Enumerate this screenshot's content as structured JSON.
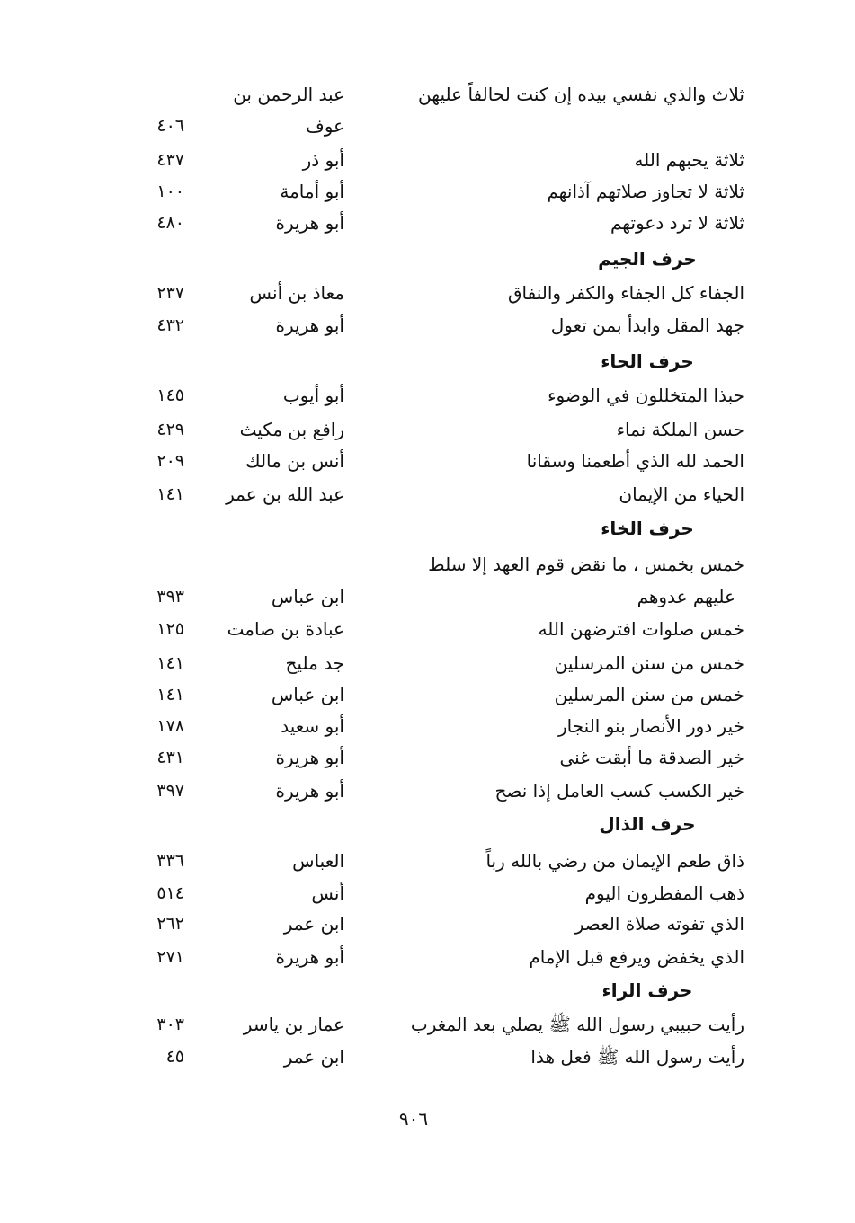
{
  "rows": [
    {
      "type": "entry",
      "hadith": "ثلاث والذي نفسي بيده إن كنت لحالفاً عليهن",
      "narrator": "عبد الرحمن بن",
      "page": ""
    },
    {
      "type": "entry",
      "hadith": "",
      "narrator": "عوف",
      "page": "٤٠٦"
    },
    {
      "type": "entry",
      "hadith": "ثلاثة يحبهم الله",
      "narrator": "أبو ذر",
      "page": "٤٣٧"
    },
    {
      "type": "entry",
      "hadith": "ثلاثة لا تجاوز صلاتهم آذانهم",
      "narrator": "أبو أمامة",
      "page": "١٠٠"
    },
    {
      "type": "entry",
      "hadith": "ثلاثة لا ترد دعوتهم",
      "narrator": "أبو هريرة",
      "page": "٤٨٠"
    },
    {
      "type": "header",
      "hadith": "حرف الجيم"
    },
    {
      "type": "entry",
      "hadith": "الجفاء كل الجفاء والكفر والنفاق",
      "narrator": "معاذ بن أنس",
      "page": "٢٣٧"
    },
    {
      "type": "entry",
      "hadith": "جهد المقل وابدأ بمن تعول",
      "narrator": "أبو هريرة",
      "page": "٤٣٢"
    },
    {
      "type": "header",
      "hadith": "حرف الحاء"
    },
    {
      "type": "entry",
      "hadith": "حبذا المتخللون في الوضوء",
      "narrator": "أبو أيوب",
      "page": "١٤٥"
    },
    {
      "type": "entry",
      "hadith": "حسن الملكة نماء",
      "narrator": "رافع بن مكيث",
      "page": "٤٢٩"
    },
    {
      "type": "entry",
      "hadith": "الحمد لله الذي أطعمنا وسقانا",
      "narrator": "أنس بن مالك",
      "page": "٢٠٩"
    },
    {
      "type": "entry",
      "hadith": "الحياء من الإيمان",
      "narrator": "عبد الله بن عمر",
      "page": "١٤١"
    },
    {
      "type": "header",
      "hadith": "حرف الخاء"
    },
    {
      "type": "entry",
      "hadith": "خمس بخمس ، ما نقض قوم العهد إلا سلط",
      "narrator": "",
      "page": ""
    },
    {
      "type": "entry",
      "hadith": "عليهم عدوهم",
      "narrator": "ابن عباس",
      "page": "٣٩٣",
      "indent": true
    },
    {
      "type": "entry",
      "hadith": "خمس صلوات افترضهن الله",
      "narrator": "عبادة بن صامت",
      "page": "١٢٥"
    },
    {
      "type": "entry",
      "hadith": "خمس من سنن المرسلين",
      "narrator": "جد مليح",
      "page": "١٤١"
    },
    {
      "type": "entry",
      "hadith": "خمس من سنن المرسلين",
      "narrator": "ابن عباس",
      "page": "١٤١"
    },
    {
      "type": "entry",
      "hadith": "خير دور الأنصار بنو النجار",
      "narrator": "أبو سعيد",
      "page": "١٧٨"
    },
    {
      "type": "entry",
      "hadith": "خير الصدقة ما أبقت غنى",
      "narrator": "أبو هريرة",
      "page": "٤٣١"
    },
    {
      "type": "entry",
      "hadith": "خير الكسب كسب العامل إذا نصح",
      "narrator": "أبو هريرة",
      "page": "٣٩٧"
    },
    {
      "type": "header",
      "hadith": "حرف الذال"
    },
    {
      "type": "entry",
      "hadith": "ذاق طعم الإيمان من رضي بالله رباً",
      "narrator": "العباس",
      "page": "٣٣٦"
    },
    {
      "type": "entry",
      "hadith": "ذهب المفطرون اليوم",
      "narrator": "أنس",
      "page": "٥١٤"
    },
    {
      "type": "entry",
      "hadith": "الذي تفوته صلاة العصر",
      "narrator": "ابن عمر",
      "page": "٢٦٢"
    },
    {
      "type": "entry",
      "hadith": "الذي يخفض ويرفع قبل الإمام",
      "narrator": "أبو هريرة",
      "page": "٢٧١"
    },
    {
      "type": "header",
      "hadith": "حرف الراء"
    },
    {
      "type": "entry",
      "hadith": "رأيت حبيبي رسول الله ﷺ يصلي بعد المغرب",
      "narrator": "عمار بن ياسر",
      "page": "٣٠٣"
    },
    {
      "type": "entry",
      "hadith": "رأيت رسول الله ﷺ فعل هذا",
      "narrator": "ابن عمر",
      "page": "٤٥"
    }
  ],
  "page_number": "٩٠٦"
}
